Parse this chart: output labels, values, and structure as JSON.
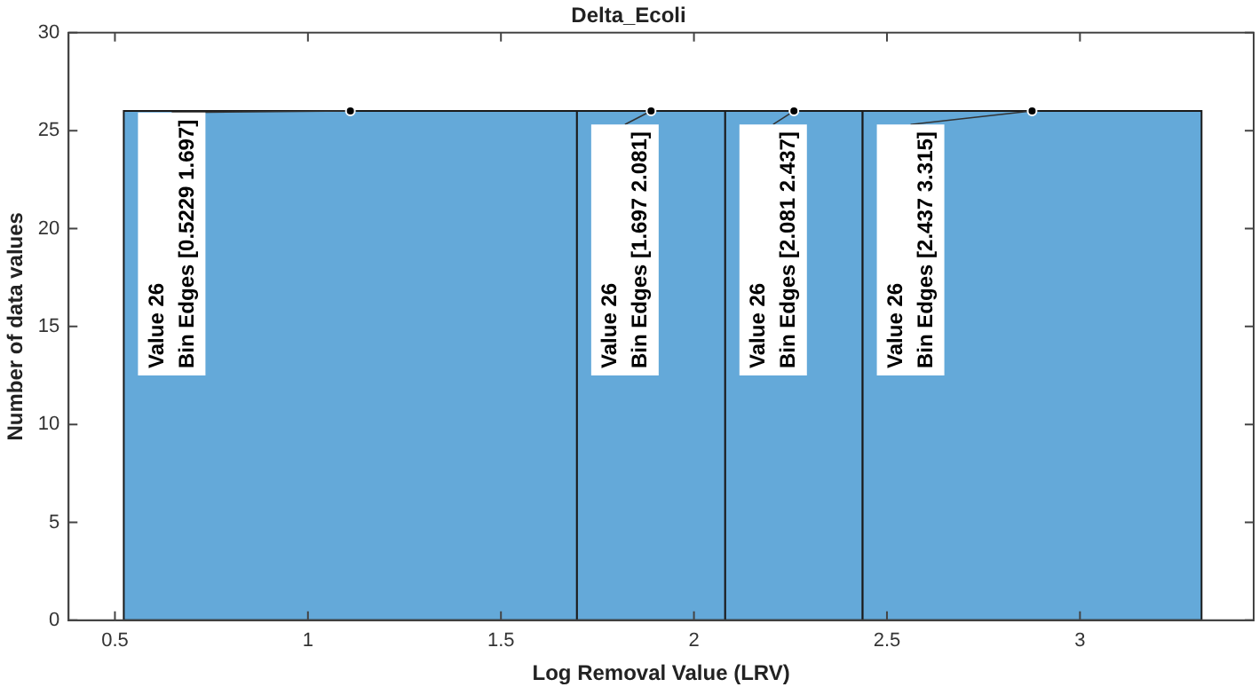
{
  "chart_data": {
    "type": "histogram",
    "title": "Delta_Ecoli",
    "xlabel": "Log Removal Value (LRV)",
    "ylabel": "Number of data values",
    "bins": [
      0.5229,
      1.697,
      2.081,
      2.437,
      3.315
    ],
    "values": [
      26,
      26,
      26,
      26
    ],
    "color": "#64a9d9",
    "xlim": [
      0.38,
      3.45
    ],
    "xticks": [
      0.5,
      1,
      1.5,
      2,
      2.5,
      3
    ],
    "ylim": [
      0,
      30
    ],
    "yticks": [
      0,
      5,
      10,
      15,
      20,
      25,
      30
    ],
    "grid": false,
    "legend": false,
    "annotations": [
      {
        "text": "Value 26\nBin Edges [0.5229 1.697]",
        "x": 1.11,
        "y": 26
      },
      {
        "text": "Value 26\nBin Edges [1.697 2.081]",
        "x": 1.889,
        "y": 26
      },
      {
        "text": "Value 26\nBin Edges [2.081 2.437]",
        "x": 2.259,
        "y": 26
      },
      {
        "text": "Value 26\nBin Edges [2.437 3.315]",
        "x": 2.876,
        "y": 26
      }
    ]
  }
}
